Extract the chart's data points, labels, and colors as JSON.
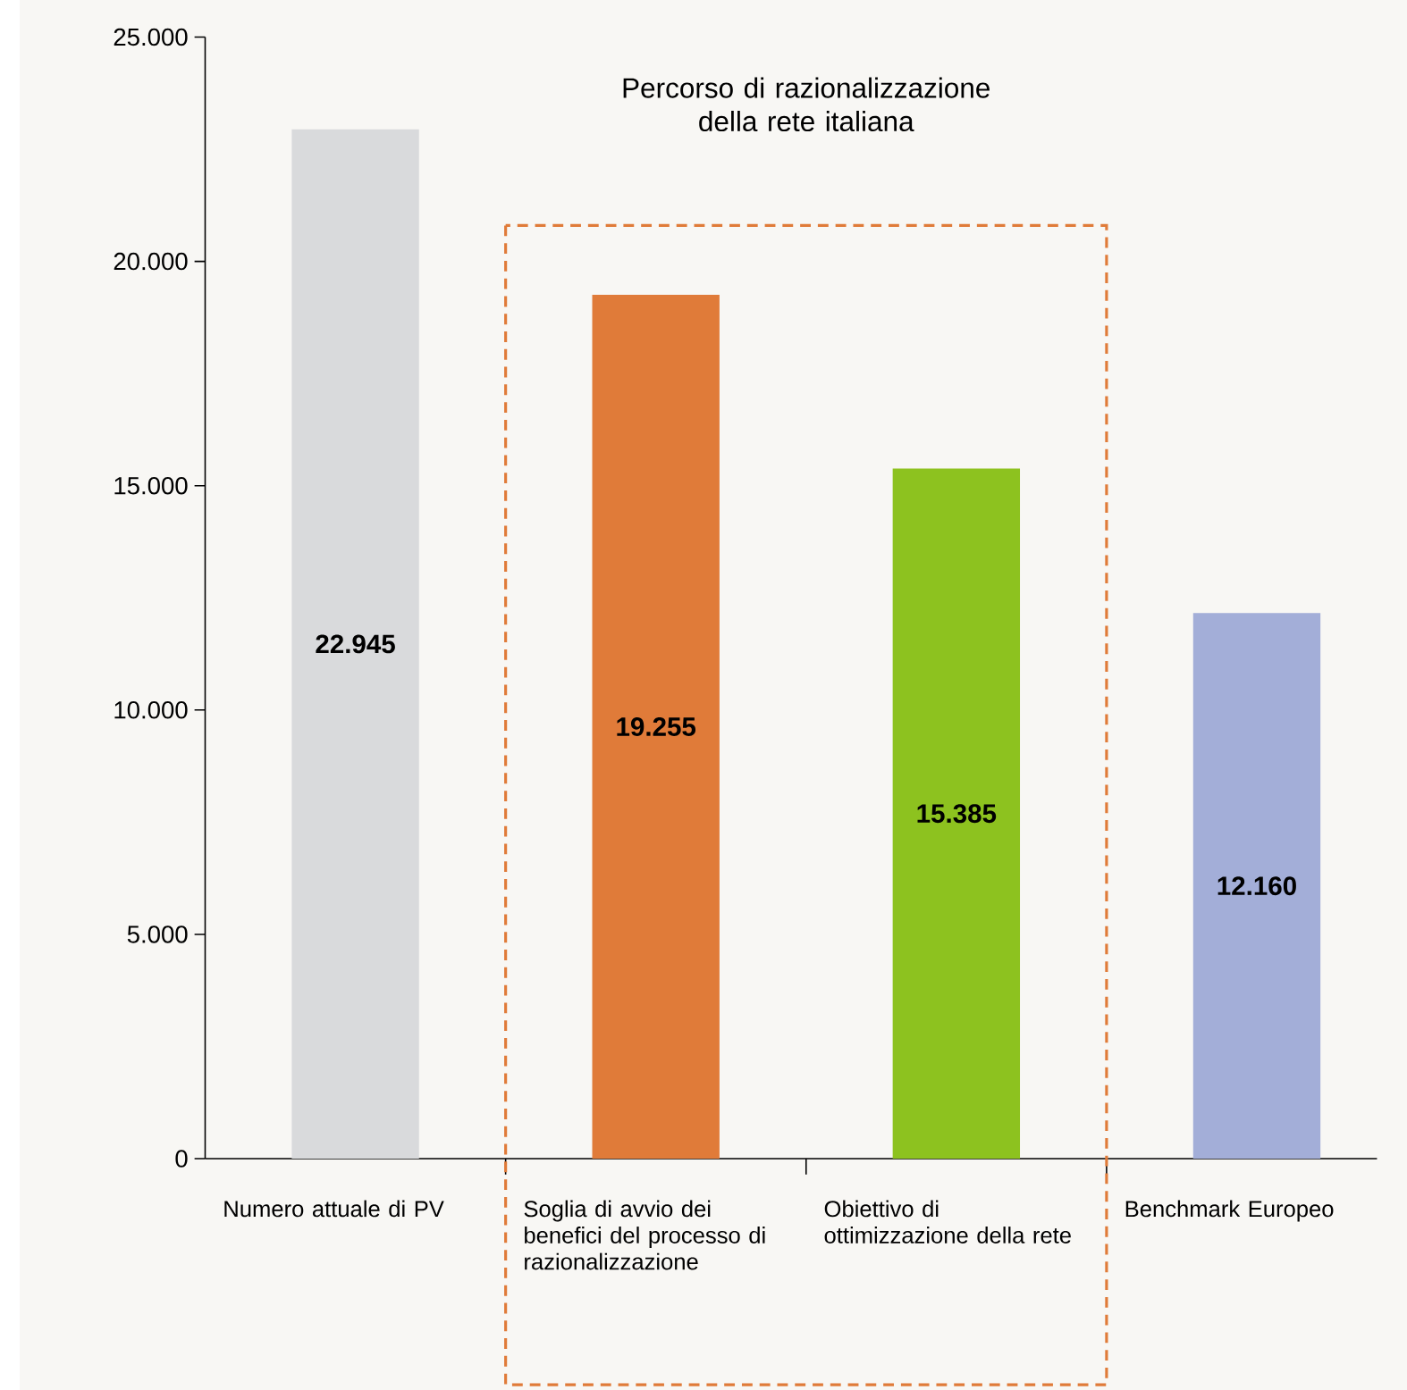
{
  "chart_data": {
    "type": "bar",
    "categories": [
      "Numero attuale di PV",
      "Soglia di avvio dei benefici del processo di razionalizzazione",
      "Obiettivo di ottimizzazione della rete",
      "Benchmark Europeo"
    ],
    "values": [
      22945,
      19255,
      15385,
      12160
    ],
    "colors": [
      "#d9dadc",
      "#e07b39",
      "#8dc21f",
      "#a3aed8"
    ],
    "value_labels": [
      "22.945",
      "19.255",
      "15.385",
      "12.160"
    ],
    "ylim": [
      0,
      25000
    ],
    "yticks": [
      {
        "value": 0,
        "label": "0"
      },
      {
        "value": 5000,
        "label": "5.000"
      },
      {
        "value": 10000,
        "label": "10.000"
      },
      {
        "value": 15000,
        "label": "15.000"
      },
      {
        "value": 20000,
        "label": "20.000"
      },
      {
        "value": 25000,
        "label": "25.000"
      }
    ],
    "annotations": [
      "Percorso di razionalizzazione della rete italiana"
    ]
  }
}
